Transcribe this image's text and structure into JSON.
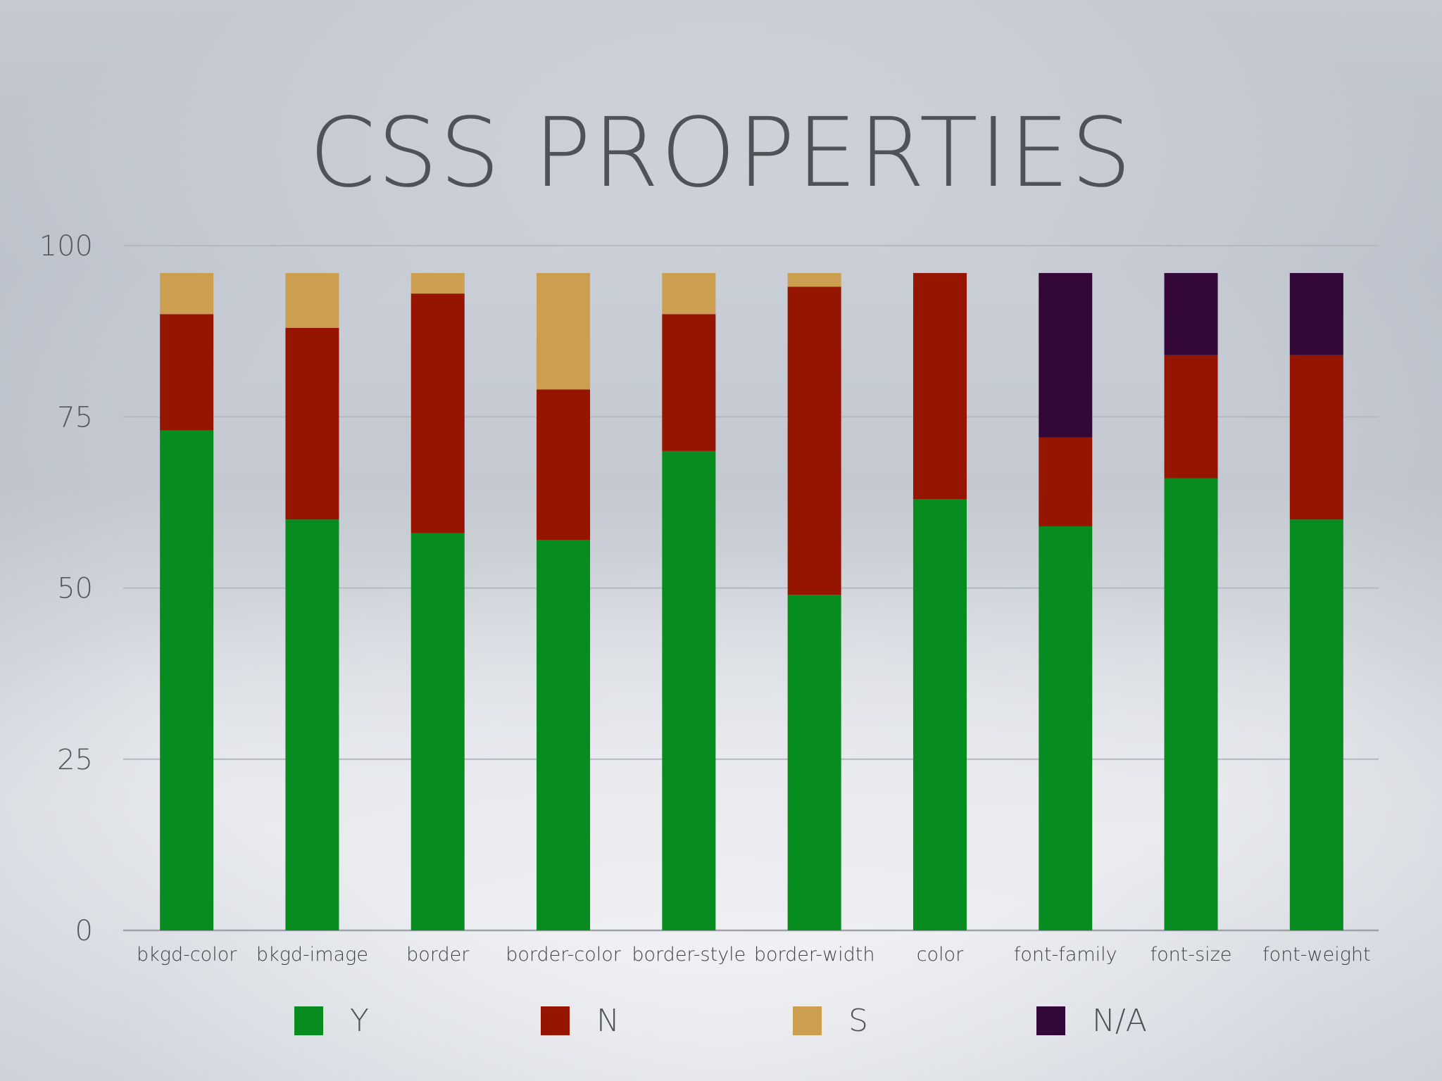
{
  "chart_data": {
    "type": "bar",
    "stacked": true,
    "title": "CSS PROPERTIES",
    "xlabel": "",
    "ylabel": "",
    "ylim": [
      0,
      100
    ],
    "yticks": [
      "0",
      "25",
      "50",
      "75",
      "100"
    ],
    "grid": true,
    "legend_position": "bottom",
    "categories": [
      "bkgd-color",
      "bkgd-image",
      "border",
      "border-color",
      "border-style",
      "border-width",
      "color",
      "font-family",
      "font-size",
      "font-weight"
    ],
    "series": [
      {
        "name": "Y",
        "color": "#078c20",
        "values": [
          73,
          60,
          58,
          57,
          70,
          49,
          63,
          59,
          66,
          60
        ]
      },
      {
        "name": "N",
        "color": "#951500",
        "values": [
          17,
          28,
          35,
          22,
          20,
          45,
          33,
          13,
          18,
          24
        ]
      },
      {
        "name": "S",
        "color": "#cb9e50",
        "values": [
          6,
          8,
          3,
          17,
          6,
          2,
          0,
          0,
          0,
          0
        ]
      },
      {
        "name": "N/A",
        "color": "#330738",
        "values": [
          0,
          0,
          0,
          0,
          0,
          0,
          0,
          24,
          12,
          12
        ]
      }
    ]
  }
}
